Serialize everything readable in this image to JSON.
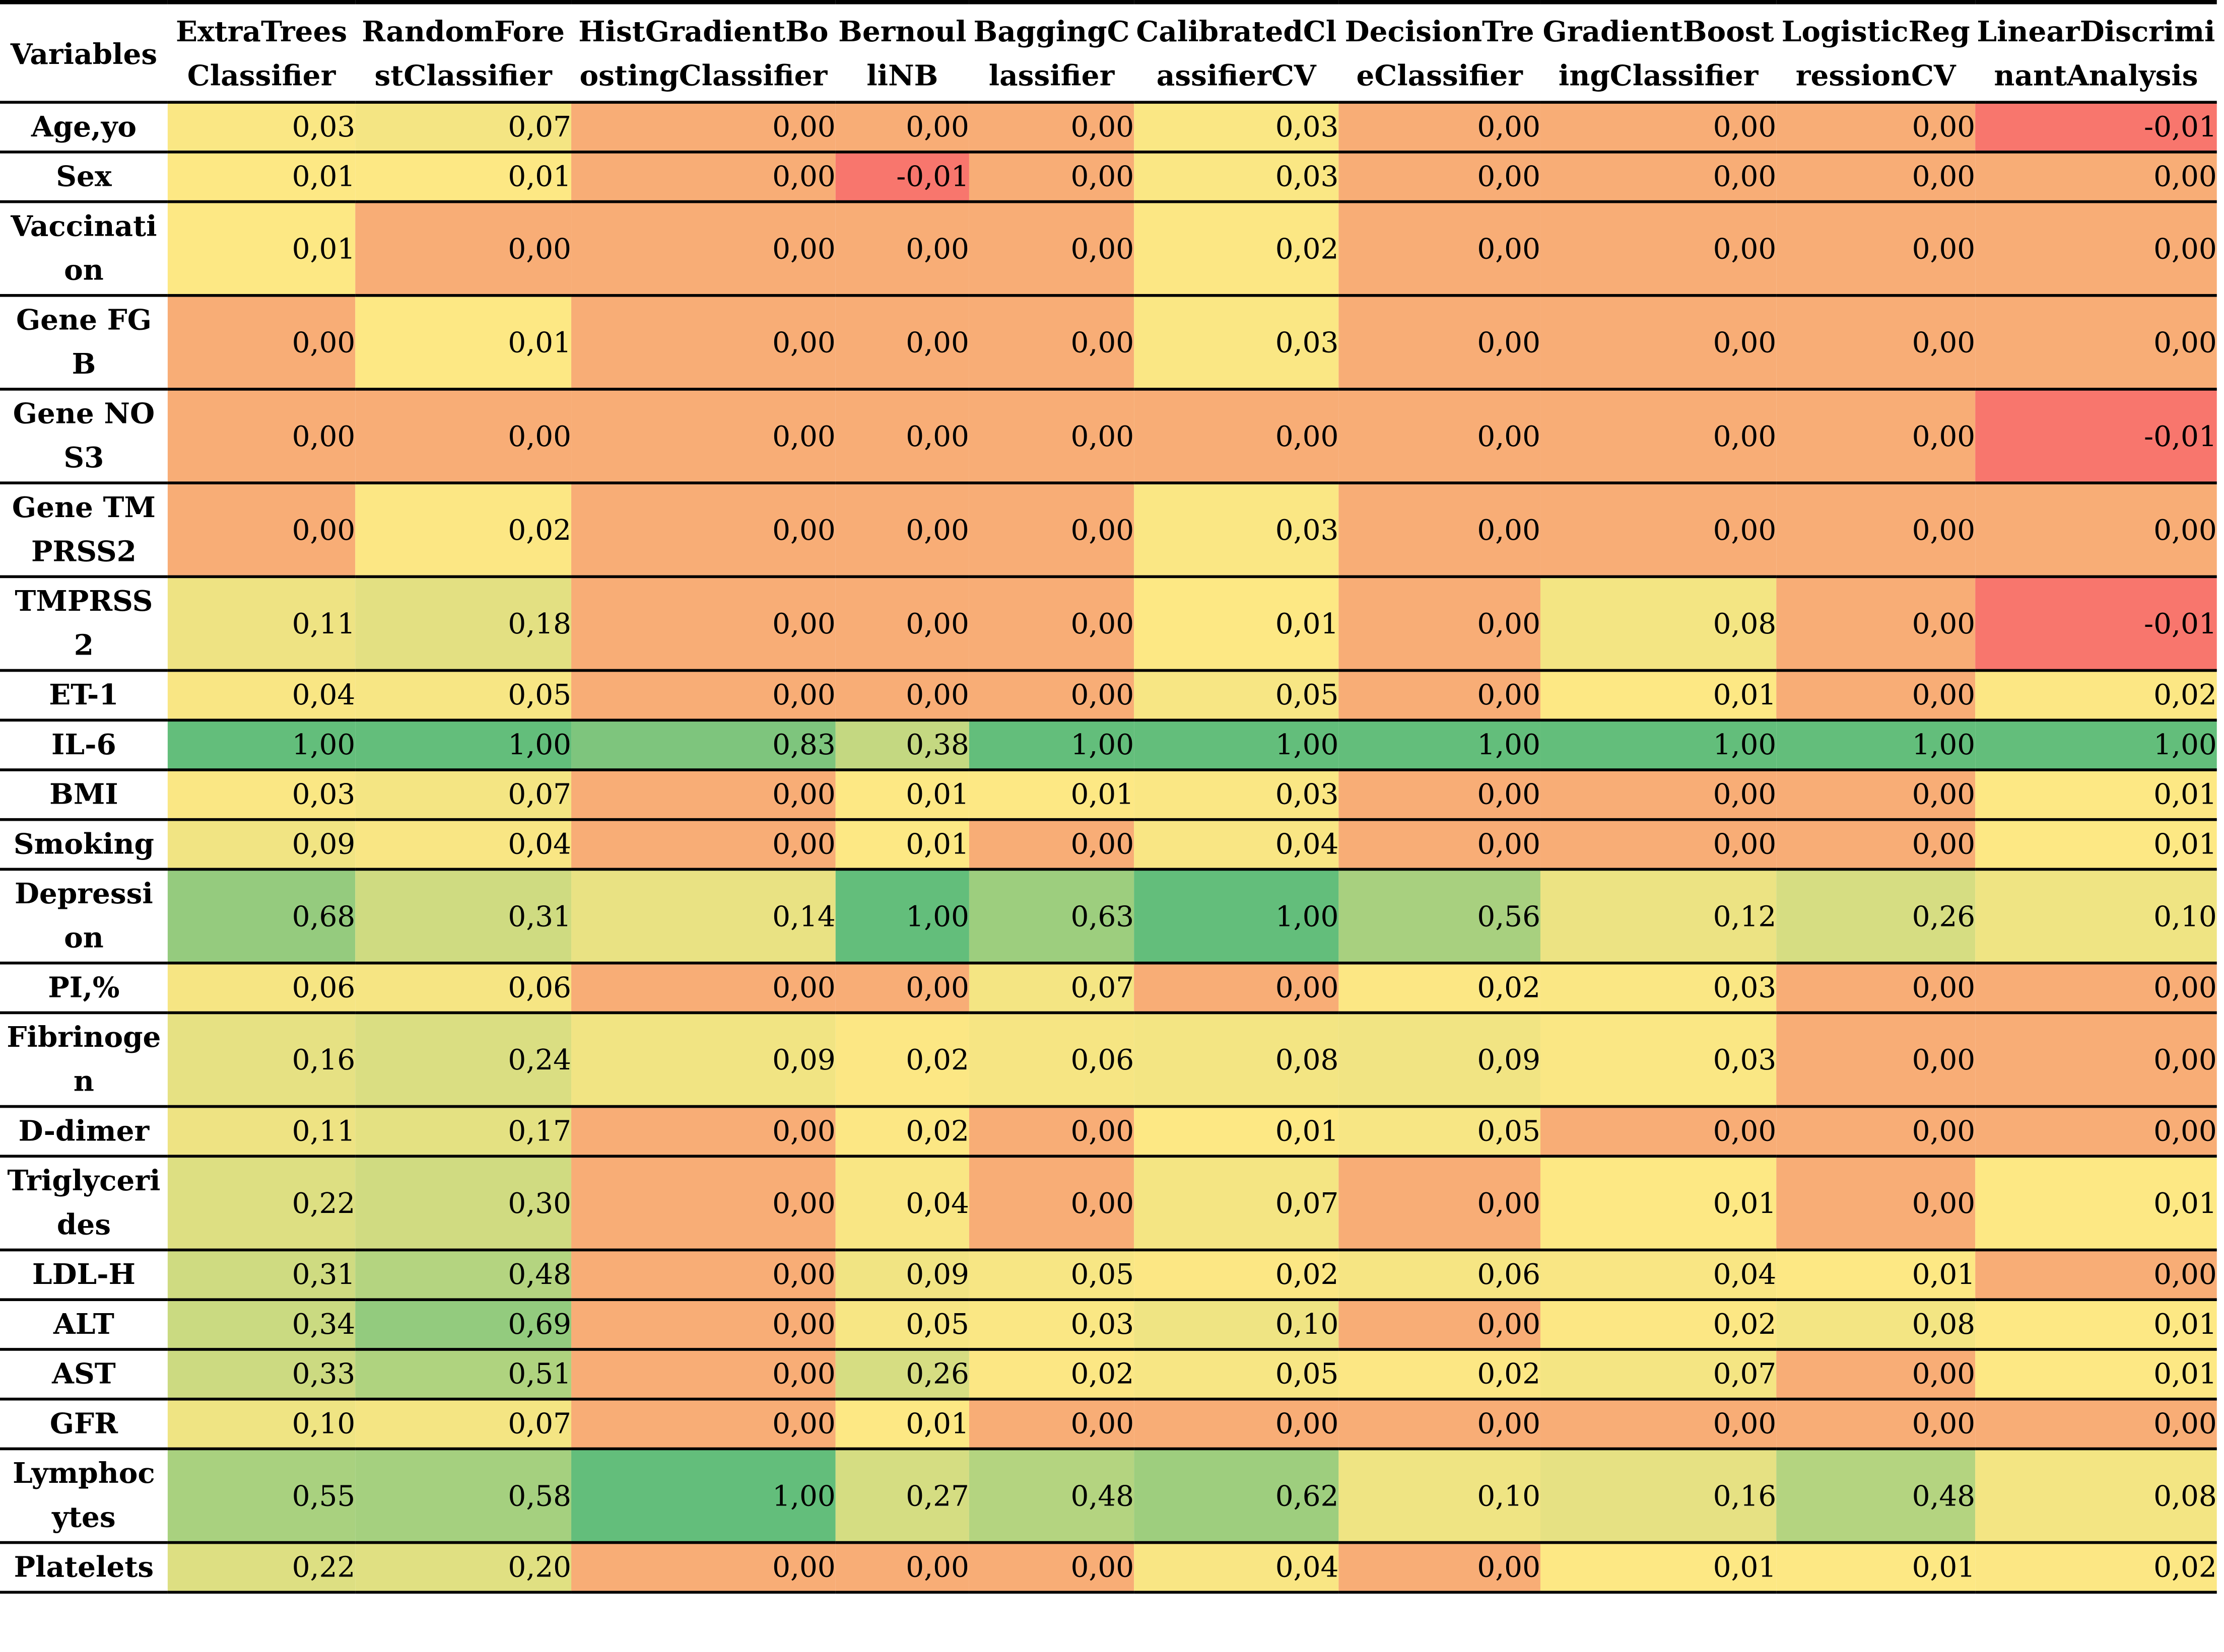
{
  "colors": {
    "negative": "#f8766d",
    "zero": "#f8ad76",
    "low": "#ffe884",
    "high": "#63be7b"
  },
  "headers": [
    "Variables",
    "ExtraTreesClassifier",
    "RandomForestClassifier",
    "HistGradientBoostingClassifier",
    "BernoulliNB",
    "BaggingClassifier",
    "CalibratedClassifierCV",
    "DecisionTreeClassifier",
    "GradientBoostingClassifier",
    "LogisticRegressionCV",
    "LinearDiscriminantAnalysis"
  ],
  "rows": [
    {
      "name": "Age,yo",
      "values": [
        "0,03",
        "0,07",
        "0,00",
        "0,00",
        "0,00",
        "0,03",
        "0,00",
        "0,00",
        "0,00",
        "-0,01"
      ]
    },
    {
      "name": "Sex",
      "values": [
        "0,01",
        "0,01",
        "0,00",
        "-0,01",
        "0,00",
        "0,03",
        "0,00",
        "0,00",
        "0,00",
        "0,00"
      ]
    },
    {
      "name": "Vaccination",
      "values": [
        "0,01",
        "0,00",
        "0,00",
        "0,00",
        "0,00",
        "0,02",
        "0,00",
        "0,00",
        "0,00",
        "0,00"
      ]
    },
    {
      "name": "Gene FGB",
      "values": [
        "0,00",
        "0,01",
        "0,00",
        "0,00",
        "0,00",
        "0,03",
        "0,00",
        "0,00",
        "0,00",
        "0,00"
      ]
    },
    {
      "name": "Gene NOS3",
      "values": [
        "0,00",
        "0,00",
        "0,00",
        "0,00",
        "0,00",
        "0,00",
        "0,00",
        "0,00",
        "0,00",
        "-0,01"
      ]
    },
    {
      "name": "Gene TMPRSS2",
      "values": [
        "0,00",
        "0,02",
        "0,00",
        "0,00",
        "0,00",
        "0,03",
        "0,00",
        "0,00",
        "0,00",
        "0,00"
      ]
    },
    {
      "name": "TMPRSS2",
      "values": [
        "0,11",
        "0,18",
        "0,00",
        "0,00",
        "0,00",
        "0,01",
        "0,00",
        "0,08",
        "0,00",
        "-0,01"
      ]
    },
    {
      "name": "ET-1",
      "values": [
        "0,04",
        "0,05",
        "0,00",
        "0,00",
        "0,00",
        "0,05",
        "0,00",
        "0,01",
        "0,00",
        "0,02"
      ]
    },
    {
      "name": "IL-6",
      "values": [
        "1,00",
        "1,00",
        "0,83",
        "0,38",
        "1,00",
        "1,00",
        "1,00",
        "1,00",
        "1,00",
        "1,00"
      ]
    },
    {
      "name": "BMI",
      "values": [
        "0,03",
        "0,07",
        "0,00",
        "0,01",
        "0,01",
        "0,03",
        "0,00",
        "0,00",
        "0,00",
        "0,01"
      ]
    },
    {
      "name": "Smoking",
      "values": [
        "0,09",
        "0,04",
        "0,00",
        "0,01",
        "0,00",
        "0,04",
        "0,00",
        "0,00",
        "0,00",
        "0,01"
      ]
    },
    {
      "name": "Depression",
      "values": [
        "0,68",
        "0,31",
        "0,14",
        "1,00",
        "0,63",
        "1,00",
        "0,56",
        "0,12",
        "0,26",
        "0,10"
      ]
    },
    {
      "name": "PI,%",
      "values": [
        "0,06",
        "0,06",
        "0,00",
        "0,00",
        "0,07",
        "0,00",
        "0,02",
        "0,03",
        "0,00",
        "0,00"
      ]
    },
    {
      "name": "Fibrinogen",
      "values": [
        "0,16",
        "0,24",
        "0,09",
        "0,02",
        "0,06",
        "0,08",
        "0,09",
        "0,03",
        "0,00",
        "0,00"
      ]
    },
    {
      "name": "D-dimer",
      "values": [
        "0,11",
        "0,17",
        "0,00",
        "0,02",
        "0,00",
        "0,01",
        "0,05",
        "0,00",
        "0,00",
        "0,00"
      ]
    },
    {
      "name": "Triglycerides",
      "values": [
        "0,22",
        "0,30",
        "0,00",
        "0,04",
        "0,00",
        "0,07",
        "0,00",
        "0,01",
        "0,00",
        "0,01"
      ]
    },
    {
      "name": "LDL-H",
      "values": [
        "0,31",
        "0,48",
        "0,00",
        "0,09",
        "0,05",
        "0,02",
        "0,06",
        "0,04",
        "0,01",
        "0,00"
      ]
    },
    {
      "name": "ALT",
      "values": [
        "0,34",
        "0,69",
        "0,00",
        "0,05",
        "0,03",
        "0,10",
        "0,00",
        "0,02",
        "0,08",
        "0,01"
      ]
    },
    {
      "name": "AST",
      "values": [
        "0,33",
        "0,51",
        "0,00",
        "0,26",
        "0,02",
        "0,05",
        "0,02",
        "0,07",
        "0,00",
        "0,01"
      ]
    },
    {
      "name": "GFR",
      "values": [
        "0,10",
        "0,07",
        "0,00",
        "0,01",
        "0,00",
        "0,00",
        "0,00",
        "0,00",
        "0,00",
        "0,00"
      ]
    },
    {
      "name": "Lymphocytes",
      "values": [
        "0,55",
        "0,58",
        "1,00",
        "0,27",
        "0,48",
        "0,62",
        "0,10",
        "0,16",
        "0,48",
        "0,08"
      ]
    },
    {
      "name": "Platelets",
      "values": [
        "0,22",
        "0,20",
        "0,00",
        "0,00",
        "0,00",
        "0,04",
        "0,00",
        "0,01",
        "0,01",
        "0,02"
      ]
    }
  ]
}
